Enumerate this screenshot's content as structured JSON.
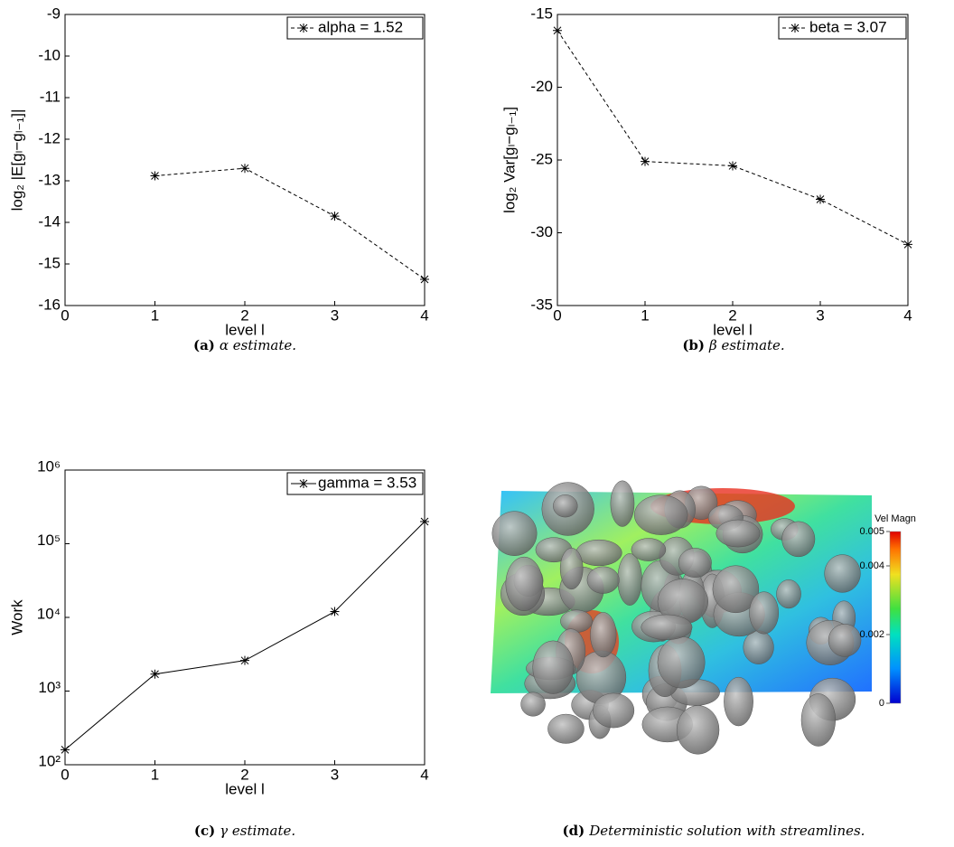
{
  "chart_data": [
    {
      "type": "line",
      "xlabel": "level l",
      "ylabel": "log₂ |E[gₗ−gₗ₋₁]|",
      "x": [
        1,
        2,
        3,
        4
      ],
      "series": [
        {
          "name": "alpha = 1.52",
          "color": "#000000",
          "values": [
            -12.88,
            -12.7,
            -13.85,
            -15.37
          ]
        }
      ],
      "line_style": "dashed",
      "marker": "asterisk",
      "xlim": [
        0,
        4
      ],
      "xticks": [
        0,
        1,
        2,
        3,
        4
      ],
      "ylim": [
        -16,
        -9
      ],
      "yticks": [
        -16,
        -15,
        -14,
        -13,
        -12,
        -11,
        -10,
        -9
      ],
      "legend": "upper right"
    },
    {
      "type": "line",
      "xlabel": "level l",
      "ylabel": "log₂ Var[gₗ−gₗ₋₁]",
      "x": [
        0,
        1,
        2,
        3,
        4
      ],
      "series": [
        {
          "name": "beta = 3.07",
          "color": "#000000",
          "values": [
            -16.1,
            -25.1,
            -25.4,
            -27.7,
            -30.8
          ]
        }
      ],
      "line_style": "dashed",
      "marker": "asterisk",
      "xlim": [
        0,
        4
      ],
      "xticks": [
        0,
        1,
        2,
        3,
        4
      ],
      "ylim": [
        -35,
        -15
      ],
      "yticks": [
        -35,
        -30,
        -25,
        -20,
        -15
      ],
      "legend": "upper right"
    },
    {
      "type": "line",
      "xlabel": "level l",
      "ylabel": "Work",
      "x": [
        0,
        1,
        2,
        3,
        4
      ],
      "series": [
        {
          "name": "gamma = 3.53",
          "color": "#000000",
          "values": [
            160,
            1700,
            2600,
            12000,
            200000
          ]
        }
      ],
      "line_style": "solid",
      "marker": "asterisk",
      "yscale": "log",
      "xlim": [
        0,
        4
      ],
      "xticks": [
        0,
        1,
        2,
        3,
        4
      ],
      "ylim": [
        100,
        1000000
      ],
      "yticks": [
        {
          "value": 100,
          "label": "10²"
        },
        {
          "value": 1000,
          "label": "10³"
        },
        {
          "value": 10000,
          "label": "10⁴"
        },
        {
          "value": 100000,
          "label": "10⁵"
        },
        {
          "value": 1000000,
          "label": "10⁶"
        }
      ],
      "legend": "upper right"
    }
  ],
  "captions": [
    {
      "label": "(a)",
      "text": "α estimate."
    },
    {
      "label": "(b)",
      "text": "β estimate."
    },
    {
      "label": "(c)",
      "text": "γ estimate."
    },
    {
      "label": "(d)",
      "text": "Deterministic solution with streamlines."
    }
  ],
  "panel_d": {
    "colorbar_title": "Vel Magn",
    "colorbar_lim": [
      0,
      0.005
    ],
    "colorbar_ticks": [
      0,
      0.002,
      0.004,
      0.005
    ]
  }
}
